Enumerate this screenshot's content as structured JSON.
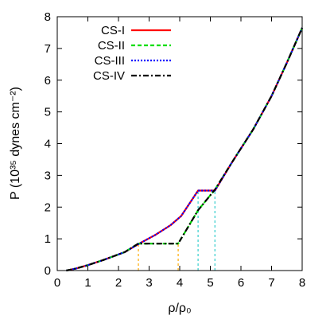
{
  "chart_data": {
    "type": "line",
    "xlabel": "ρ/ρ₀",
    "ylabel": "P (10³⁵ dynes cm⁻²)",
    "xlim": [
      0,
      8
    ],
    "ylim": [
      0,
      8
    ],
    "xticks": [
      "0",
      "1",
      "2",
      "3",
      "4",
      "5",
      "6",
      "7",
      "8"
    ],
    "yticks": [
      "0",
      "1",
      "2",
      "3",
      "4",
      "5",
      "6",
      "7",
      "8"
    ],
    "grid": false,
    "legend_position": "top-left",
    "series": [
      {
        "name": "CS-I",
        "color": "#ff0000",
        "dash": "solid",
        "x": [
          0.3,
          0.6,
          1.0,
          1.5,
          2.2,
          2.7,
          3.2,
          3.7,
          4.05,
          4.6,
          5.15,
          5.7,
          6.4,
          7.0,
          7.5,
          8.0
        ],
        "y": [
          0.0,
          0.06,
          0.17,
          0.33,
          0.58,
          0.86,
          1.12,
          1.43,
          1.72,
          2.52,
          2.52,
          3.4,
          4.45,
          5.5,
          6.55,
          7.65
        ]
      },
      {
        "name": "CS-II",
        "color": "#00dd00",
        "dash": "dashed",
        "x": [
          0.3,
          0.6,
          1.0,
          1.5,
          2.2,
          2.65,
          3.95,
          4.6,
          5.15,
          5.7,
          6.4,
          7.0,
          7.5,
          8.0
        ],
        "y": [
          0.0,
          0.06,
          0.17,
          0.33,
          0.58,
          0.85,
          0.85,
          1.9,
          2.55,
          3.4,
          4.45,
          5.5,
          6.55,
          7.65
        ]
      },
      {
        "name": "CS-III",
        "color": "#0000ff",
        "dash": "dotted",
        "x": [
          0.3,
          0.6,
          1.0,
          1.5,
          2.2,
          2.7,
          3.2,
          3.7,
          4.05,
          4.6,
          5.15,
          5.7,
          6.4,
          7.0,
          7.5,
          8.0
        ],
        "y": [
          0.0,
          0.06,
          0.17,
          0.33,
          0.58,
          0.86,
          1.12,
          1.43,
          1.72,
          2.52,
          2.52,
          3.4,
          4.45,
          5.5,
          6.55,
          7.65
        ]
      },
      {
        "name": "CS-IV",
        "color": "#000000",
        "dash": "dashdot",
        "x": [
          0.3,
          0.6,
          1.0,
          1.5,
          2.2,
          2.65,
          3.95,
          4.6,
          5.15,
          5.7,
          6.4,
          7.0,
          7.5,
          8.0
        ],
        "y": [
          0.0,
          0.06,
          0.17,
          0.33,
          0.58,
          0.85,
          0.85,
          1.9,
          2.55,
          3.4,
          4.45,
          5.5,
          6.55,
          7.65
        ]
      }
    ],
    "vertical_markers": [
      {
        "x": 2.65,
        "y_top": 0.85,
        "color": "#ffaa00"
      },
      {
        "x": 3.95,
        "y_top": 0.85,
        "color": "#ffaa00"
      },
      {
        "x": 4.6,
        "y_top": 2.52,
        "color": "#33cccc"
      },
      {
        "x": 5.15,
        "y_top": 2.52,
        "color": "#33cccc"
      }
    ]
  }
}
